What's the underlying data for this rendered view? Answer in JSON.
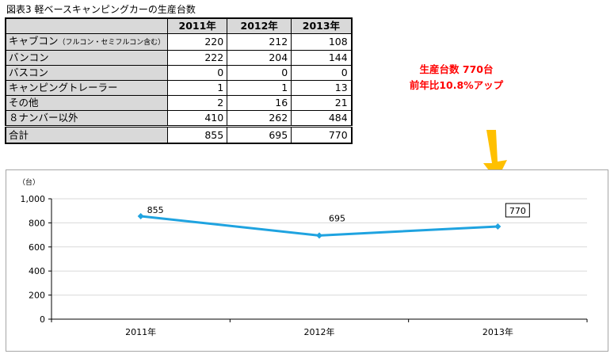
{
  "figure": {
    "title": "図表3  軽ベースキャンピングカーの生産台数"
  },
  "table": {
    "headers": [
      "2011年",
      "2012年",
      "2013年"
    ],
    "rows": [
      {
        "label": "キャブコン",
        "note": "（フルコン・セミフルコン含む）",
        "values": [
          "220",
          "212",
          "108"
        ]
      },
      {
        "label": "バンコン",
        "note": "",
        "values": [
          "222",
          "204",
          "144"
        ]
      },
      {
        "label": "バスコン",
        "note": "",
        "values": [
          "0",
          "0",
          "0"
        ]
      },
      {
        "label": "キャンピングトレーラー",
        "note": "",
        "values": [
          "1",
          "1",
          "13"
        ]
      },
      {
        "label": "その他",
        "note": "",
        "values": [
          "2",
          "16",
          "21"
        ]
      },
      {
        "label": "８ナンバー以外",
        "note": "",
        "values": [
          "410",
          "262",
          "484"
        ]
      }
    ],
    "total": {
      "label": "合計",
      "values": [
        "855",
        "695",
        "770"
      ]
    }
  },
  "callout": {
    "line1": "生産台数  770台",
    "line2": "前年比10.8%アップ",
    "color": "#ff0000",
    "arrow_color": "#ffc000"
  },
  "chart_data": {
    "type": "line",
    "ylabel": "（台）",
    "categories": [
      "2011年",
      "2012年",
      "2013年"
    ],
    "series": [
      {
        "values": [
          855,
          695,
          770
        ],
        "color": "#1fa3e0"
      }
    ],
    "data_labels": [
      "855",
      "695",
      "770"
    ],
    "boxed_label_index": 2,
    "ylim": [
      0,
      1000
    ],
    "yticks": [
      0,
      200,
      400,
      600,
      800,
      1000
    ],
    "ytick_labels": [
      "0",
      "200",
      "400",
      "600",
      "800",
      "1,000"
    ],
    "grid": true,
    "legend": "none"
  }
}
